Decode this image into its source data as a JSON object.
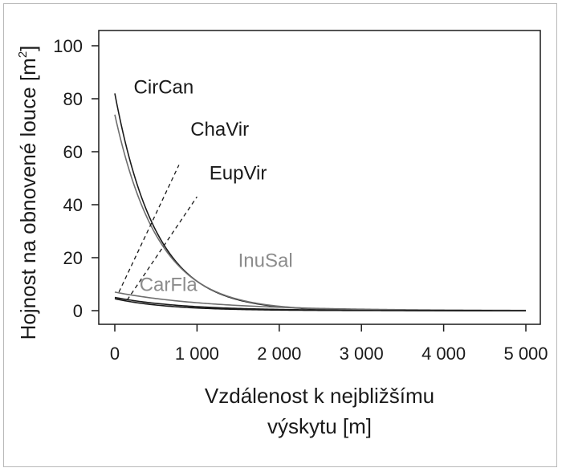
{
  "chart_data": {
    "type": "line",
    "title": "",
    "xlabel_lines": [
      "Vzdálenost k nejbližšímu",
      "výskytu [m]"
    ],
    "ylabel": "Hojnost na obnovené louce [m",
    "ylabel_sup": "2",
    "ylabel_close": "]",
    "xlim": [
      0,
      5000
    ],
    "ylim": [
      0,
      100
    ],
    "x_ticks": [
      0,
      1000,
      2000,
      3000,
      4000,
      5000
    ],
    "x_tick_labels": [
      "0",
      "1 000",
      "2 000",
      "3 000",
      "4 000",
      "5 000"
    ],
    "y_ticks": [
      0,
      20,
      40,
      60,
      80,
      100
    ],
    "y_tick_labels": [
      "0",
      "20",
      "40",
      "60",
      "80",
      100
    ],
    "grid": false,
    "series": [
      {
        "name": "CirCan",
        "model": "exponential",
        "y0": 82,
        "k": 0.002,
        "color": "#1a1a1a",
        "label_color": "#1a1a1a"
      },
      {
        "name": "ChaVir",
        "model": "exponential",
        "y0": 74,
        "k": 0.0019,
        "color": "#6e6e6e",
        "label_color": "#1a1a1a"
      },
      {
        "name": "EupVir",
        "model": "exponential",
        "y0": 5,
        "k": 0.0012,
        "color": "#1a1a1a",
        "label_color": "#1a1a1a"
      },
      {
        "name": "InuSal",
        "model": "exponential",
        "y0": 7,
        "k": 0.00085,
        "color": "#6e6e6e",
        "label_color": "#8c8c8c"
      },
      {
        "name": "CarFla",
        "model": "exponential",
        "y0": 4.5,
        "k": 0.0015,
        "color": "#1a1a1a",
        "label_color": "#8c8c8c"
      }
    ],
    "label_positions": [
      {
        "name": "CirCan",
        "x": 230,
        "y": 82
      },
      {
        "name": "ChaVir",
        "x": 920,
        "y": 66
      },
      {
        "name": "EupVir",
        "x": 1150,
        "y": 49.5
      },
      {
        "name": "InuSal",
        "x": 1500,
        "y": 16.5
      },
      {
        "name": "CarFla",
        "x": 300,
        "y": 7.5
      }
    ],
    "leader_lines": [
      {
        "name": "ChaVir",
        "from": [
          50,
          7
        ],
        "to": [
          780,
          55
        ]
      },
      {
        "name": "EupVir",
        "from": [
          150,
          4
        ],
        "to": [
          1000,
          43
        ]
      }
    ]
  }
}
